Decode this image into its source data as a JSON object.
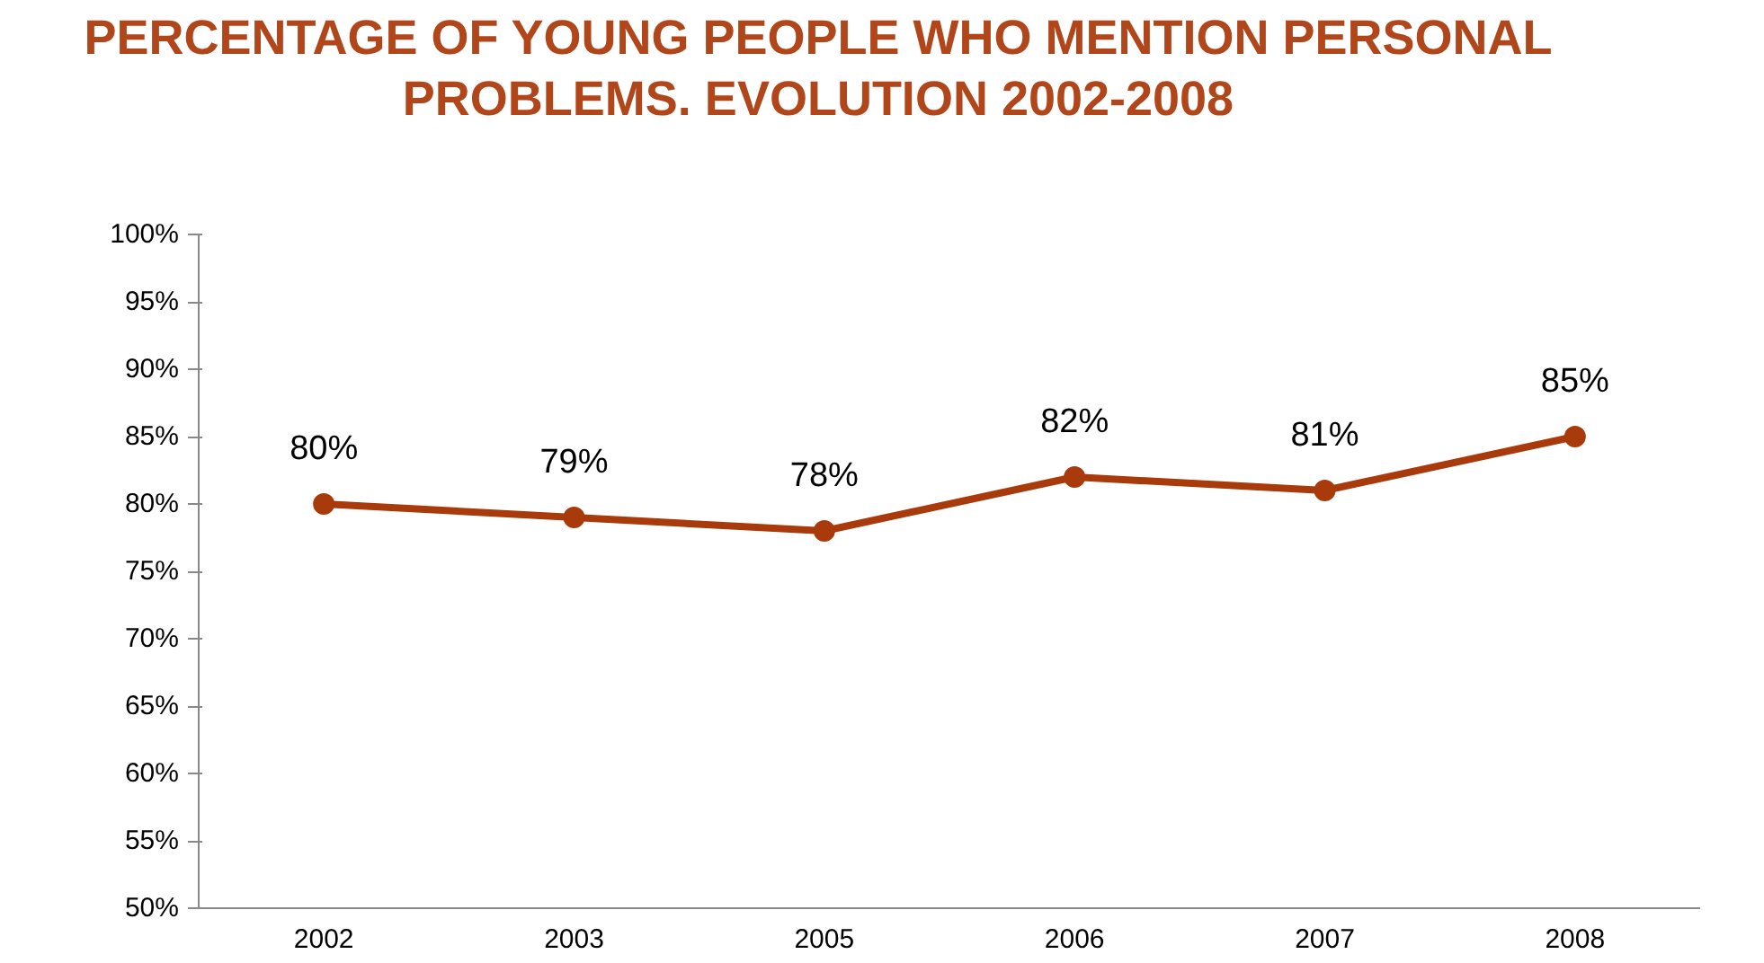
{
  "chart_data": {
    "type": "line",
    "title": "PERCENTAGE OF YOUNG PEOPLE WHO MENTION PERSONAL PROBLEMS. EVOLUTION 2002-2008",
    "categories": [
      "2002",
      "2003",
      "2005",
      "2006",
      "2007",
      "2008"
    ],
    "series": [
      {
        "color": "#a83a0c",
        "values": [
          80,
          79,
          78,
          82,
          81,
          85
        ]
      }
    ],
    "ylim": [
      50,
      100
    ],
    "yticks": [
      {
        "value": 50,
        "label": "50%"
      },
      {
        "value": 55,
        "label": "55%"
      },
      {
        "value": 60,
        "label": "60%"
      },
      {
        "value": 65,
        "label": "65%"
      },
      {
        "value": 70,
        "label": "70%"
      },
      {
        "value": 75,
        "label": "75%"
      },
      {
        "value": 80,
        "label": "80%"
      },
      {
        "value": 85,
        "label": "85%"
      },
      {
        "value": 90,
        "label": "90%"
      },
      {
        "value": 95,
        "label": "95%"
      },
      {
        "value": 100,
        "label": "100%"
      }
    ],
    "value_labels": [
      "80%",
      "79%",
      "78%",
      "82%",
      "81%",
      "85%"
    ],
    "marker": "circle",
    "line_style": "solid"
  }
}
